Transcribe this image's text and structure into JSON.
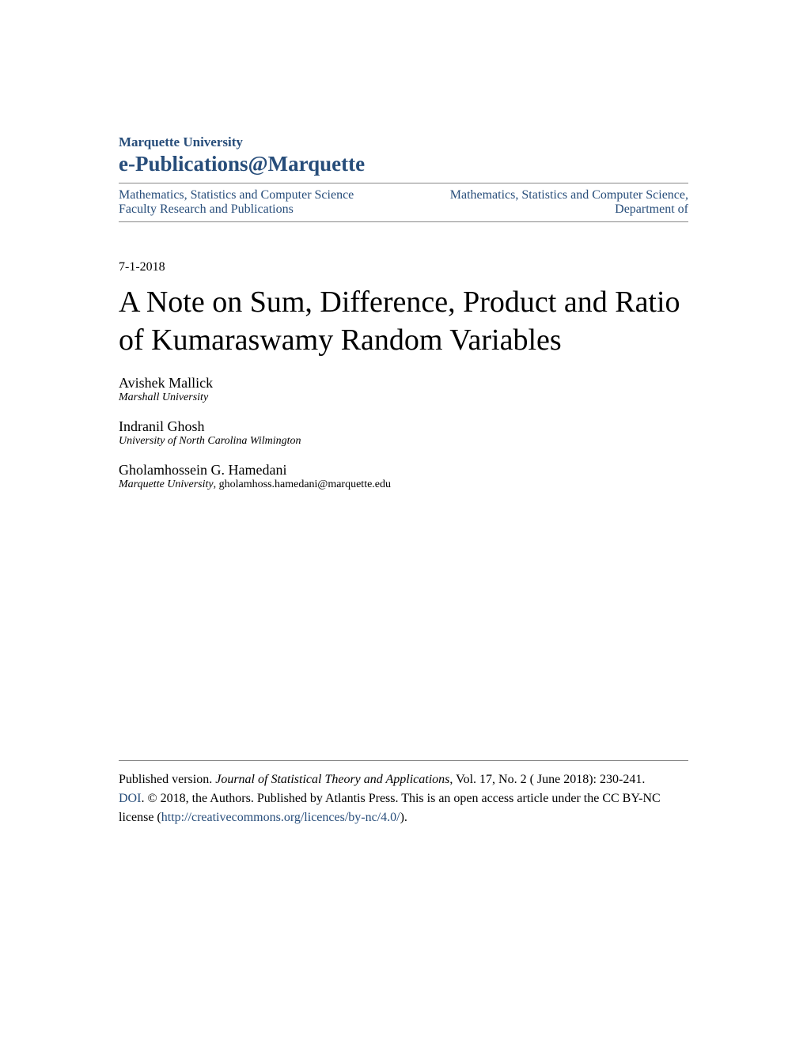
{
  "header": {
    "university": "Marquette University",
    "repository": "e-Publications@Marquette",
    "nav_left_line1": "Mathematics, Statistics and Computer Science",
    "nav_left_line2": "Faculty Research and Publications",
    "nav_right_line1": "Mathematics, Statistics and Computer Science,",
    "nav_right_line2": "Department of"
  },
  "date": "7-1-2018",
  "title": "A Note on Sum, Difference, Product and Ratio of Kumaraswamy Random Variables",
  "authors": [
    {
      "name": "Avishek Mallick",
      "affiliation": "Marshall University",
      "email": ""
    },
    {
      "name": "Indranil Ghosh",
      "affiliation": "University of North Carolina Wilmington",
      "email": ""
    },
    {
      "name": "Gholamhossein G. Hamedani",
      "affiliation": "Marquette University",
      "email": ", gholamhoss.hamedani@marquette.edu"
    }
  ],
  "footer": {
    "pub_label": "Published version. ",
    "journal": "Journal of Statistical Theory and Applications",
    "citation": ", Vol. 17, No. 2 ( June 2018): 230-241. ",
    "doi": "DOI",
    "copyright": ". © 2018, the Authors. Published by Atlantis Press. This is an open access article under the CC BY-NC license (",
    "license_url": "http://creativecommons.org/licences/by-nc/4.0/",
    "closing": ")."
  },
  "colors": {
    "link": "#274d7a",
    "text": "#000000",
    "divider": "#888888",
    "background": "#ffffff"
  }
}
